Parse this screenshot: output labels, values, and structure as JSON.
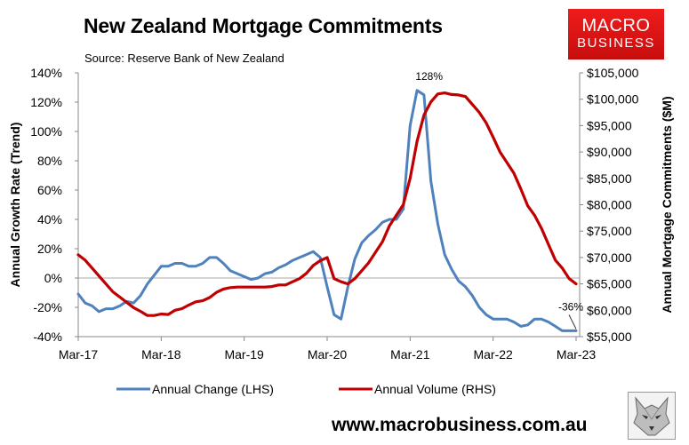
{
  "header": {
    "title": "New Zealand Mortgage Commitments",
    "source": "Source: Reserve Bank of New Zealand"
  },
  "logo": {
    "line1": "MACRO",
    "line2": "BUSINESS"
  },
  "footer": {
    "website": "www.macrobusiness.com.au"
  },
  "colors": {
    "lhs_series": "#4f81bd",
    "rhs_series": "#c00000"
  },
  "chart_data": {
    "type": "line",
    "x_range": [
      "2017-03",
      "2023-03"
    ],
    "x_ticks": [
      "Mar-17",
      "Mar-18",
      "Mar-19",
      "Mar-20",
      "Mar-21",
      "Mar-22",
      "Mar-23"
    ],
    "y_left": {
      "label": "Annual Growth Rate (Trend)",
      "range": [
        -40,
        140
      ],
      "ticks": [
        "-40%",
        "-20%",
        "0%",
        "20%",
        "40%",
        "60%",
        "80%",
        "100%",
        "120%",
        "140%"
      ]
    },
    "y_right": {
      "label": "Annual Mortgage Commitments ($M)",
      "range": [
        55000,
        105000
      ],
      "ticks": [
        "$55,000",
        "$60,000",
        "$65,000",
        "$70,000",
        "$75,000",
        "$80,000",
        "$85,000",
        "$90,000",
        "$95,000",
        "$100,000",
        "$105,000"
      ]
    },
    "annotations": [
      {
        "text": "128%",
        "x": "2021-06",
        "y": 128,
        "axis": "left"
      },
      {
        "text": "-36%",
        "x": "2023-03",
        "y": -36,
        "axis": "left"
      }
    ],
    "legend": {
      "position": "bottom"
    },
    "series": [
      {
        "name": "Annual Change (LHS)",
        "axis": "left",
        "color": "#4f81bd",
        "x": [
          "2017-03",
          "2017-04",
          "2017-05",
          "2017-06",
          "2017-07",
          "2017-08",
          "2017-09",
          "2017-10",
          "2017-11",
          "2017-12",
          "2018-01",
          "2018-02",
          "2018-03",
          "2018-04",
          "2018-05",
          "2018-06",
          "2018-07",
          "2018-08",
          "2018-09",
          "2018-10",
          "2018-11",
          "2018-12",
          "2019-01",
          "2019-02",
          "2019-03",
          "2019-04",
          "2019-05",
          "2019-06",
          "2019-07",
          "2019-08",
          "2019-09",
          "2019-10",
          "2019-11",
          "2019-12",
          "2020-01",
          "2020-02",
          "2020-03",
          "2020-04",
          "2020-05",
          "2020-06",
          "2020-07",
          "2020-08",
          "2020-09",
          "2020-10",
          "2020-11",
          "2020-12",
          "2021-01",
          "2021-02",
          "2021-03",
          "2021-04",
          "2021-05",
          "2021-06",
          "2021-07",
          "2021-08",
          "2021-09",
          "2021-10",
          "2021-11",
          "2021-12",
          "2022-01",
          "2022-02",
          "2022-03",
          "2022-04",
          "2022-05",
          "2022-06",
          "2022-07",
          "2022-08",
          "2022-09",
          "2022-10",
          "2022-11",
          "2022-12",
          "2023-01",
          "2023-02",
          "2023-03"
        ],
        "values": [
          -11,
          -17,
          -19,
          -23,
          -21,
          -21,
          -19,
          -16,
          -17,
          -12,
          -4,
          2,
          8,
          8,
          10,
          10,
          8,
          8,
          10,
          14,
          14,
          10,
          5,
          3,
          1,
          -1,
          0,
          3,
          4,
          7,
          9,
          12,
          14,
          16,
          18,
          14,
          -6,
          -25,
          -28,
          -6,
          13,
          24,
          29,
          33,
          38,
          40,
          40,
          47,
          104,
          128,
          125,
          66,
          37,
          16,
          6,
          -2,
          -6,
          -12,
          -20,
          -25,
          -28,
          -28,
          -28,
          -30,
          -33,
          -32,
          -28,
          -28,
          -30,
          -33,
          -36,
          -36,
          -36
        ]
      },
      {
        "name": "Annual Volume (RHS)",
        "axis": "right",
        "color": "#c00000",
        "x": [
          "2017-03",
          "2017-04",
          "2017-05",
          "2017-06",
          "2017-07",
          "2017-08",
          "2017-09",
          "2017-10",
          "2017-11",
          "2017-12",
          "2018-01",
          "2018-02",
          "2018-03",
          "2018-04",
          "2018-05",
          "2018-06",
          "2018-07",
          "2018-08",
          "2018-09",
          "2018-10",
          "2018-11",
          "2018-12",
          "2019-01",
          "2019-02",
          "2019-03",
          "2019-04",
          "2019-05",
          "2019-06",
          "2019-07",
          "2019-08",
          "2019-09",
          "2019-10",
          "2019-11",
          "2019-12",
          "2020-01",
          "2020-02",
          "2020-03",
          "2020-04",
          "2020-05",
          "2020-06",
          "2020-07",
          "2020-08",
          "2020-09",
          "2020-10",
          "2020-11",
          "2020-12",
          "2021-01",
          "2021-02",
          "2021-03",
          "2021-04",
          "2021-05",
          "2021-06",
          "2021-07",
          "2021-08",
          "2021-09",
          "2021-10",
          "2021-11",
          "2021-12",
          "2022-01",
          "2022-02",
          "2022-03",
          "2022-04",
          "2022-05",
          "2022-06",
          "2022-07",
          "2022-08",
          "2022-09",
          "2022-10",
          "2022-11",
          "2022-12",
          "2023-01",
          "2023-02",
          "2023-03"
        ],
        "values": [
          70500,
          69500,
          68000,
          66500,
          65000,
          63500,
          62500,
          61500,
          60500,
          59800,
          59000,
          59000,
          59300,
          59200,
          60000,
          60300,
          61000,
          61600,
          61800,
          62400,
          63400,
          64000,
          64300,
          64400,
          64400,
          64400,
          64400,
          64400,
          64500,
          64800,
          64800,
          65400,
          66000,
          67000,
          68500,
          69400,
          70000,
          66000,
          65400,
          65000,
          66000,
          67500,
          69000,
          71000,
          73000,
          76000,
          78000,
          80000,
          85000,
          92000,
          97000,
          99500,
          101000,
          101200,
          100900,
          100800,
          100500,
          99000,
          97500,
          95500,
          92800,
          90000,
          88000,
          86000,
          83000,
          79800,
          78000,
          75500,
          72500,
          69500,
          68000,
          66000,
          65000
        ]
      }
    ]
  }
}
